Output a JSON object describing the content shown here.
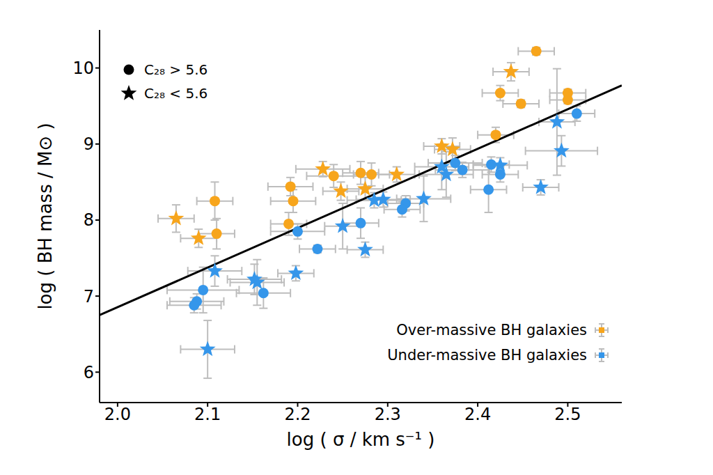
{
  "chart_data": {
    "type": "scatter",
    "xlabel": "log ( σ / km s⁻¹ )",
    "ylabel": "log ( BH mass / M⊙ )",
    "xlim": [
      1.98,
      2.56
    ],
    "ylim": [
      5.6,
      10.5
    ],
    "xticks": [
      {
        "value": 2.0,
        "label": "2.0"
      },
      {
        "value": 2.1,
        "label": "2.1"
      },
      {
        "value": 2.2,
        "label": "2.2"
      },
      {
        "value": 2.3,
        "label": "2.3"
      },
      {
        "value": 2.4,
        "label": "2.4"
      },
      {
        "value": 2.5,
        "label": "2.5"
      }
    ],
    "yticks": [
      6,
      7,
      8,
      9,
      10
    ],
    "legend": "lower right",
    "marker_legend": [
      {
        "marker": "circle",
        "label": "C₂₈ > 5.6"
      },
      {
        "marker": "star",
        "label": "C₂₈ < 5.6"
      }
    ],
    "series": [
      {
        "name": "Over-massive BH galaxies",
        "color": "#f7a51c",
        "x": [
          2.465,
          2.425,
          2.448,
          2.5,
          2.5,
          2.42,
          2.108,
          2.11,
          2.192,
          2.195,
          2.19,
          2.24,
          2.27,
          2.282,
          2.437,
          2.065,
          2.09,
          2.228,
          2.248,
          2.275,
          2.31,
          2.36,
          2.372
        ],
        "y": [
          10.22,
          9.67,
          9.53,
          9.67,
          9.58,
          9.12,
          8.25,
          7.82,
          8.44,
          8.25,
          7.95,
          8.58,
          8.62,
          8.6,
          9.95,
          8.02,
          7.76,
          8.67,
          8.38,
          8.41,
          8.6,
          8.97,
          8.93
        ],
        "x_error": [
          0.02,
          0.02,
          0.02,
          0.02,
          0.02,
          0.02,
          0.02,
          0.02,
          0.025,
          0.025,
          0.02,
          0.03,
          0.02,
          0.02,
          0.02,
          0.02,
          0.02,
          0.03,
          0.02,
          0.02,
          0.02,
          0.02,
          0.02
        ],
        "y_error": [
          0.05,
          0.1,
          0.05,
          0.05,
          0.05,
          0.1,
          0.25,
          0.2,
          0.12,
          0.15,
          0.15,
          0.15,
          0.15,
          0.15,
          0.12,
          0.18,
          0.12,
          0.1,
          0.12,
          0.15,
          0.1,
          0.1,
          0.15
        ],
        "markers": [
          "circle",
          "circle",
          "circle",
          "circle",
          "circle",
          "circle",
          "circle",
          "circle",
          "circle",
          "circle",
          "circle",
          "circle",
          "circle",
          "circle",
          "star",
          "star",
          "star",
          "star",
          "star",
          "star",
          "star",
          "star",
          "star"
        ]
      },
      {
        "name": "Under-massive BH galaxies",
        "color": "#3596ea",
        "x": [
          2.51,
          2.415,
          2.425,
          2.412,
          2.375,
          2.383,
          2.32,
          2.316,
          2.27,
          2.222,
          2.2,
          2.162,
          2.095,
          2.088,
          2.085,
          2.488,
          2.493,
          2.47,
          2.425,
          2.36,
          2.365,
          2.34,
          2.295,
          2.285,
          2.25,
          2.275,
          2.198,
          2.108,
          2.155,
          2.152,
          2.1
        ],
        "y": [
          9.4,
          8.73,
          8.6,
          8.4,
          8.75,
          8.66,
          8.22,
          8.14,
          7.96,
          7.62,
          7.85,
          7.04,
          7.08,
          6.93,
          6.88,
          9.29,
          8.91,
          8.43,
          8.72,
          8.7,
          8.6,
          8.28,
          8.27,
          8.26,
          7.92,
          7.61,
          7.3,
          7.33,
          7.18,
          7.22,
          6.3
        ],
        "x_error": [
          0.02,
          0.02,
          0.02,
          0.02,
          0.03,
          0.03,
          0.02,
          0.02,
          0.02,
          0.02,
          0.03,
          0.03,
          0.04,
          0.03,
          0.03,
          0.02,
          0.04,
          0.02,
          0.03,
          0.03,
          0.03,
          0.03,
          0.03,
          0.03,
          0.02,
          0.02,
          0.02,
          0.03,
          0.03,
          0.03,
          0.03
        ],
        "y_error": [
          0.1,
          0.1,
          0.1,
          0.3,
          0.1,
          0.1,
          0.1,
          0.1,
          0.2,
          0.05,
          0.1,
          0.2,
          0.3,
          0.1,
          0.1,
          0.7,
          0.2,
          0.1,
          0.1,
          0.3,
          0.3,
          0.3,
          0.1,
          0.1,
          0.3,
          0.1,
          0.1,
          0.2,
          0.3,
          0.2,
          0.38
        ],
        "markers": [
          "circle",
          "circle",
          "circle",
          "circle",
          "circle",
          "circle",
          "circle",
          "circle",
          "circle",
          "circle",
          "circle",
          "circle",
          "circle",
          "circle",
          "circle",
          "star",
          "star",
          "star",
          "star",
          "star",
          "star",
          "star",
          "star",
          "star",
          "star",
          "star",
          "star",
          "star",
          "star",
          "star",
          "star"
        ]
      }
    ],
    "fit_line": {
      "x": [
        1.98,
        2.56
      ],
      "y": [
        6.75,
        9.77
      ],
      "color": "#000000"
    }
  }
}
